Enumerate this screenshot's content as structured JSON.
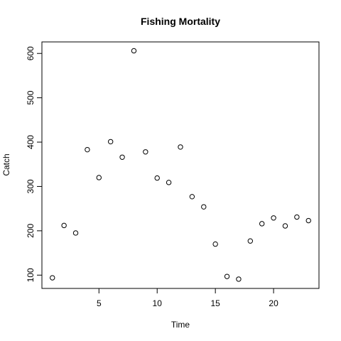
{
  "chart_data": {
    "type": "scatter",
    "title": "Fishing Mortality",
    "xlabel": "Time",
    "ylabel": "Catch",
    "x": [
      1,
      2,
      3,
      4,
      5,
      6,
      7,
      8,
      9,
      10,
      11,
      12,
      13,
      14,
      15,
      16,
      17,
      18,
      19,
      20,
      21,
      22,
      23
    ],
    "y": [
      94,
      212,
      195,
      383,
      320,
      401,
      366,
      606,
      378,
      319,
      309,
      389,
      277,
      254,
      170,
      97,
      91,
      177,
      216,
      229,
      211,
      231,
      223
    ],
    "xlim": [
      0.1,
      23.9
    ],
    "ylim": [
      70,
      626
    ],
    "xticks": [
      5,
      10,
      15,
      20
    ],
    "yticks": [
      100,
      200,
      300,
      400,
      500,
      600
    ],
    "grid": false,
    "marker": "open-circle",
    "colors": {
      "points": "#000000",
      "axes": "#000000",
      "background": "#ffffff"
    }
  }
}
